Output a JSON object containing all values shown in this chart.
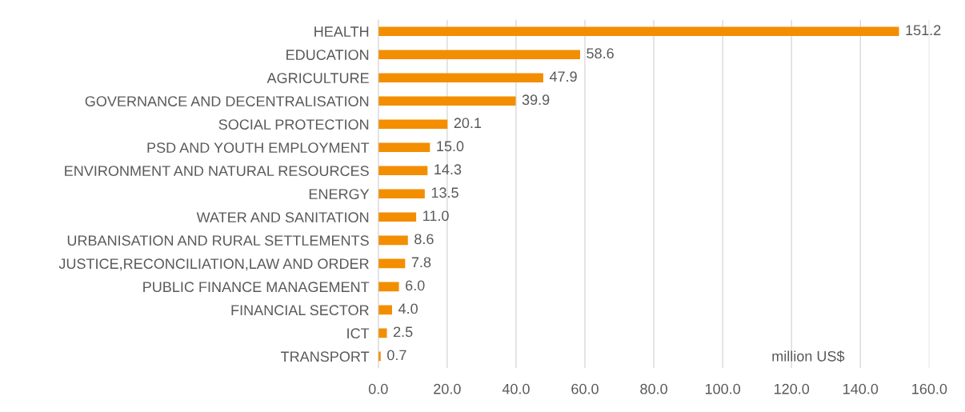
{
  "chart_data": {
    "type": "bar",
    "orientation": "horizontal",
    "categories": [
      "HEALTH",
      "EDUCATION",
      "AGRICULTURE",
      "GOVERNANCE AND DECENTRALISATION",
      "SOCIAL PROTECTION",
      "PSD AND YOUTH EMPLOYMENT",
      "ENVIRONMENT AND NATURAL RESOURCES",
      "ENERGY",
      "WATER AND SANITATION",
      "URBANISATION AND RURAL SETTLEMENTS",
      "JUSTICE,RECONCILIATION,LAW AND ORDER",
      "PUBLIC FINANCE MANAGEMENT",
      "FINANCIAL SECTOR",
      "ICT",
      "TRANSPORT"
    ],
    "values": [
      151.2,
      58.6,
      47.9,
      39.9,
      20.1,
      15.0,
      14.3,
      13.5,
      11.0,
      8.6,
      7.8,
      6.0,
      4.0,
      2.5,
      0.7
    ],
    "value_labels": [
      "151.2",
      "58.6",
      "47.9",
      "39.9",
      "20.1",
      "15.0",
      "14.3",
      "13.5",
      "11.0",
      "8.6",
      "7.8",
      "6.0",
      "4.0",
      "2.5",
      "0.7"
    ],
    "color": "#f28e00",
    "xlim": [
      0,
      160
    ],
    "xticks": [
      {
        "value": 0,
        "label": "0.0"
      },
      {
        "value": 20,
        "label": "20.0"
      },
      {
        "value": 40,
        "label": "40.0"
      },
      {
        "value": 60,
        "label": "60.0"
      },
      {
        "value": 80,
        "label": "80.0"
      },
      {
        "value": 100,
        "label": "100.0"
      },
      {
        "value": 120,
        "label": "120.0"
      },
      {
        "value": 140,
        "label": "140.0"
      },
      {
        "value": 160,
        "label": "160.0"
      }
    ],
    "grid": "x",
    "legend": false,
    "annotations": [
      "million US$"
    ]
  }
}
